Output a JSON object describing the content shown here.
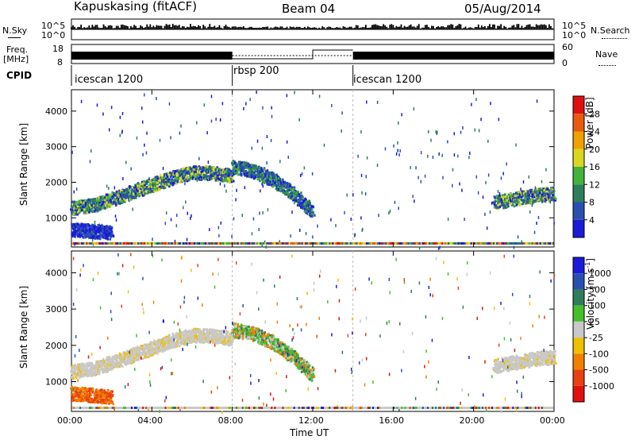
{
  "header": {
    "station": "Kapuskasing (fitACF)",
    "beam": "Beam 04",
    "date": "05/Aug/2014"
  },
  "strip": {
    "nsky_label": "N.Sky",
    "nsky_ticks": [
      "10^5",
      "10^0"
    ],
    "nsearch_label": "N.Search",
    "nsearch_ticks": [
      "10^5",
      "10^0"
    ],
    "freq_label": "Freq.",
    "freq_unit": "[MHz]",
    "freq_ticks": [
      "18",
      "8"
    ],
    "nave_label": "Nave",
    "nave_ticks": [
      "60",
      "0"
    ],
    "cpid_label": "CPID",
    "cpid_segments": [
      {
        "name": "icescan 1200",
        "start": 0,
        "end": 8
      },
      {
        "name": "rbsp 200",
        "start": 8,
        "end": 14
      },
      {
        "name": "icescan 1200",
        "start": 14,
        "end": 24
      }
    ]
  },
  "chart_data": [
    {
      "type": "heatmap",
      "parameter": "Power",
      "ylabel": "Slant Range [km]",
      "xlabel": "",
      "x_ticks": [
        "00:00",
        "04:00",
        "08:00",
        "12:00",
        "16:00",
        "20:00",
        "00:00"
      ],
      "y_ticks": [
        1000,
        2000,
        3000,
        4000
      ],
      "xlim_hours": [
        0,
        24
      ],
      "ylim_km": [
        180,
        4600
      ],
      "colorbar": {
        "label": "Power [dB]",
        "ticks": [
          "4",
          "8",
          "12",
          "16",
          "20",
          "24",
          "28"
        ],
        "colors": [
          "#1a1ad8",
          "#2a4fb0",
          "#2e7d5c",
          "#44b33a",
          "#d8d820",
          "#f0a000",
          "#e85a10",
          "#e01010"
        ]
      },
      "echo_features": [
        {
          "x": [
            0.0,
            1.0,
            2.0,
            3.0,
            4.0,
            5.0,
            6.0,
            7.0,
            8.0
          ],
          "y": [
            1300,
            1380,
            1550,
            1750,
            1950,
            2150,
            2300,
            2280,
            2200
          ],
          "level": "med"
        },
        {
          "x": [
            8.0,
            9.0,
            10.0,
            11.0,
            12.0
          ],
          "y": [
            2450,
            2350,
            2100,
            1700,
            1200
          ],
          "level": "high"
        },
        {
          "x": [
            21.0,
            22.0,
            23.0,
            24.0
          ],
          "y": [
            1450,
            1550,
            1650,
            1700
          ],
          "level": "med"
        },
        {
          "x": [
            0.0,
            1.0,
            2.0
          ],
          "y": [
            700,
            650,
            600
          ],
          "level": "low"
        }
      ]
    },
    {
      "type": "heatmap",
      "parameter": "Velocity",
      "ylabel": "Slant Range [km]",
      "xlabel": "Time UT",
      "x_ticks": [
        "00:00",
        "04:00",
        "08:00",
        "12:00",
        "16:00",
        "20:00",
        "00:00"
      ],
      "y_ticks": [
        1000,
        2000,
        3000,
        4000
      ],
      "xlim_hours": [
        0,
        24
      ],
      "ylim_km": [
        180,
        4600
      ],
      "colorbar": {
        "label": "Velocity [m s^-1]",
        "ticks": [
          "1000",
          "500",
          "100",
          "25",
          "-25",
          "-100",
          "-500",
          "-1000"
        ],
        "colors": [
          "#1a1ad8",
          "#2a4fb0",
          "#2e7d5c",
          "#44c02a",
          "#c8c8c8",
          "#f0c000",
          "#f08000",
          "#e84010",
          "#e01010"
        ]
      },
      "echo_features": [
        {
          "x": [
            0.0,
            1.0,
            2.0,
            3.0,
            4.0,
            5.0,
            6.0,
            7.0,
            8.0
          ],
          "y": [
            1300,
            1380,
            1550,
            1750,
            1950,
            2150,
            2300,
            2280,
            2200
          ],
          "level": "gray"
        },
        {
          "x": [
            8.0,
            9.0,
            10.0,
            11.0,
            12.0
          ],
          "y": [
            2450,
            2350,
            2100,
            1700,
            1200
          ],
          "level": "mixed"
        },
        {
          "x": [
            21.0,
            22.0,
            23.0,
            24.0
          ],
          "y": [
            1450,
            1550,
            1650,
            1700
          ],
          "level": "gray"
        },
        {
          "x": [
            0.0,
            1.0,
            2.0
          ],
          "y": [
            700,
            650,
            600
          ],
          "level": "orange"
        }
      ]
    }
  ]
}
